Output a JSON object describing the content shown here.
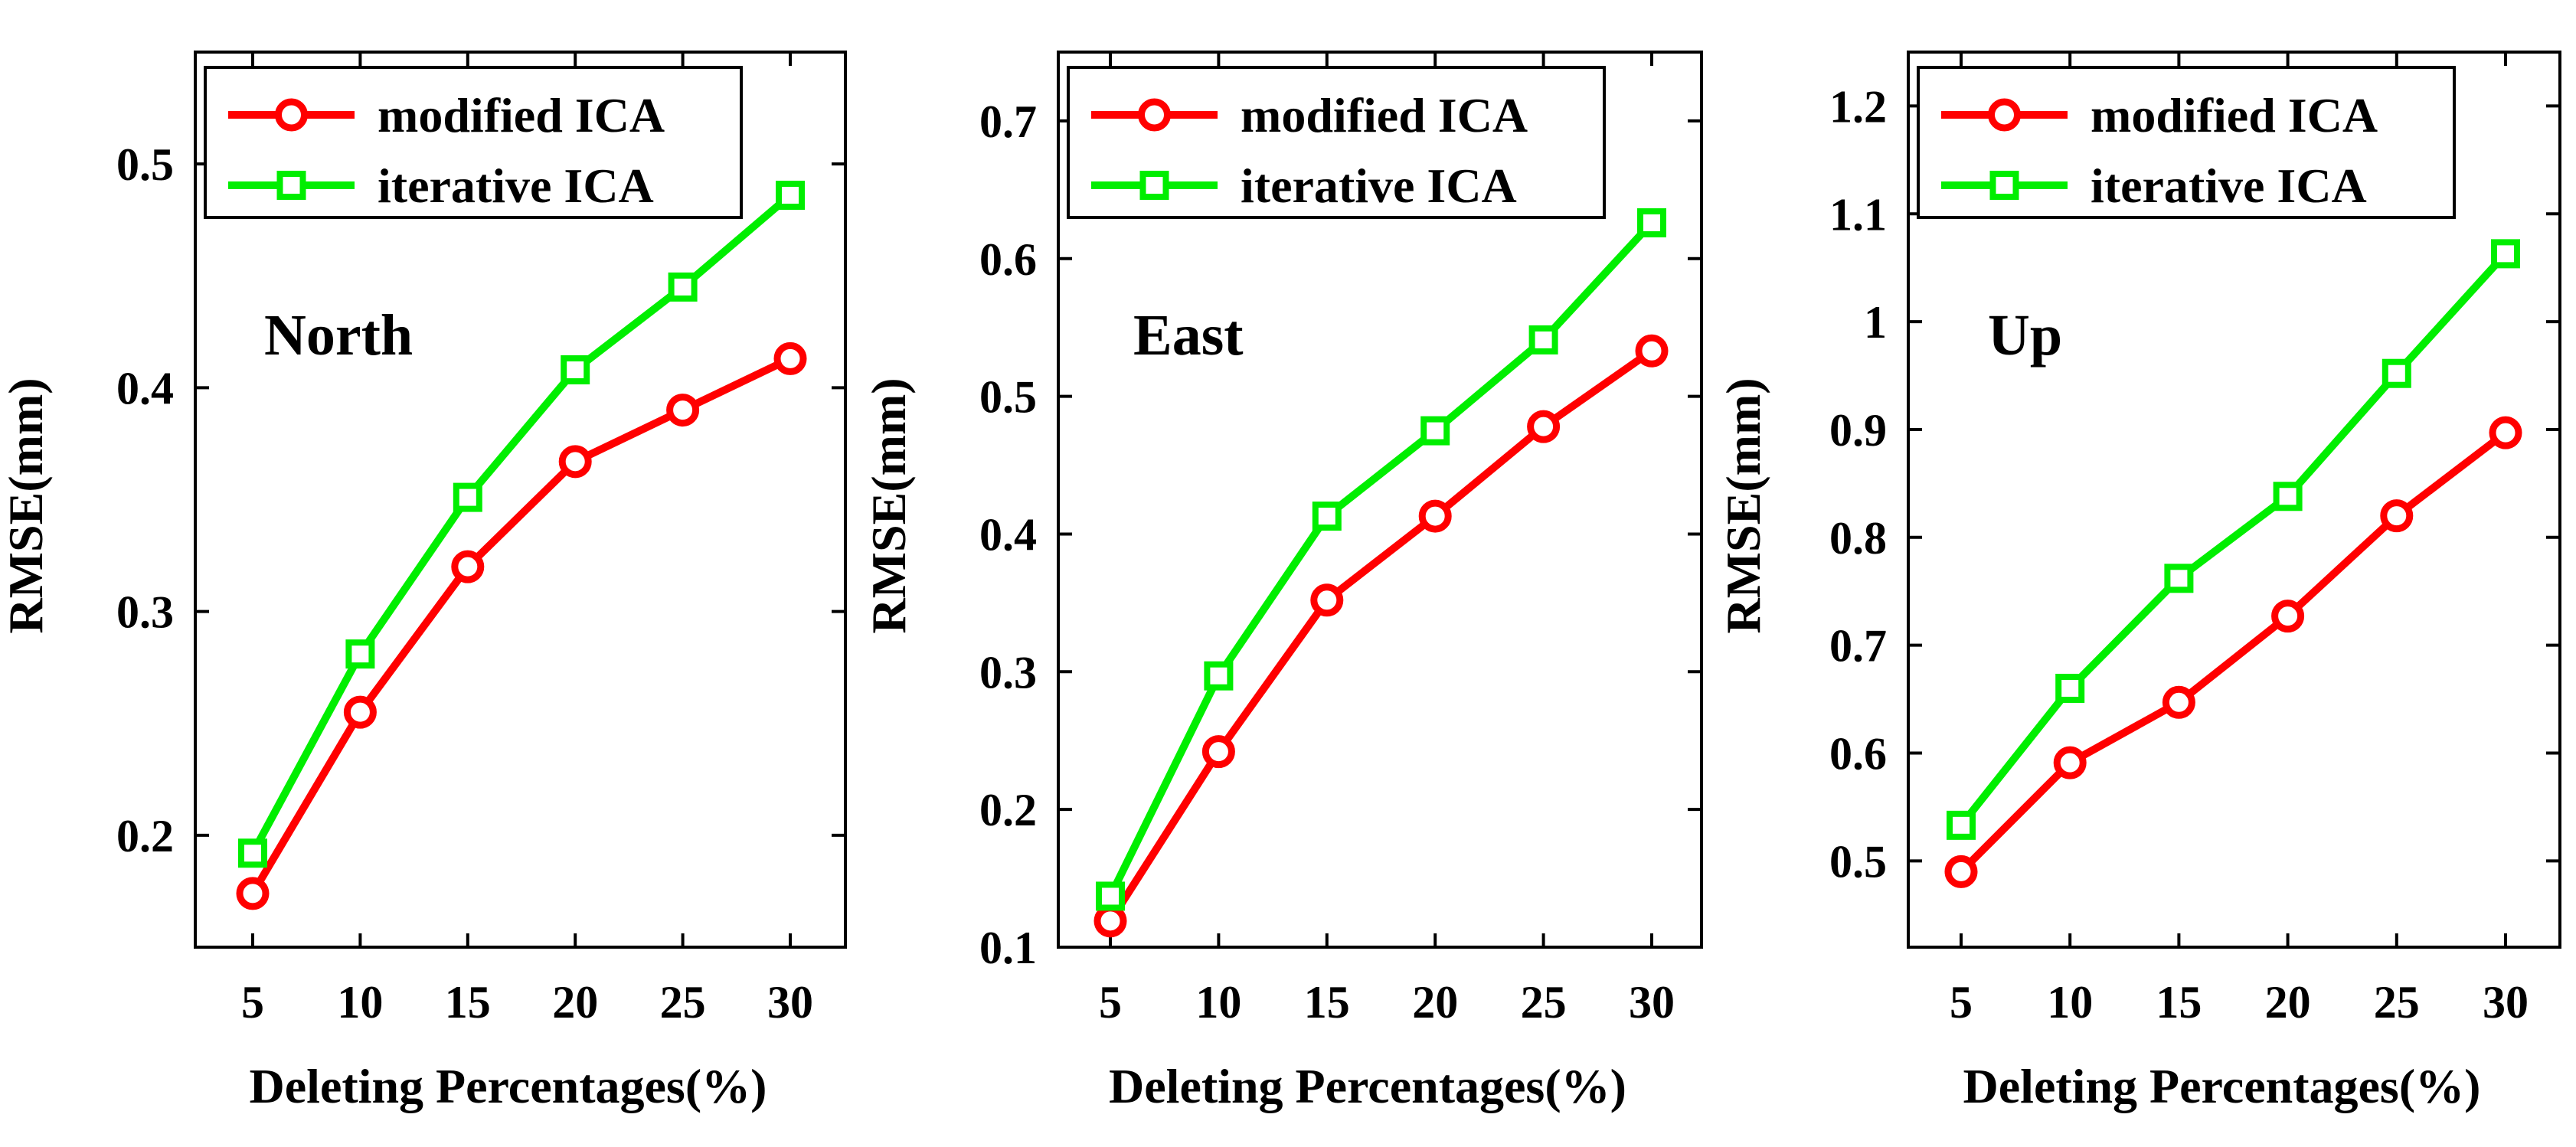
{
  "chart_data": [
    {
      "type": "line",
      "title": "North",
      "xlabel": "Deleting Percentages(%)",
      "ylabel": "RMSE(mm)",
      "x": [
        5,
        10,
        15,
        20,
        25,
        30
      ],
      "xticks": [
        "5",
        "10",
        "15",
        "20",
        "25",
        "30"
      ],
      "ylim": [
        0.15,
        0.55
      ],
      "yticks": [
        "0.2",
        "0.3",
        "0.4",
        "0.5"
      ],
      "yticks_values": [
        0.2,
        0.3,
        0.4,
        0.5
      ],
      "legend_position": "top-left",
      "series": [
        {
          "name": "modified ICA",
          "color": "#ff0000",
          "marker": "circle",
          "values": [
            0.174,
            0.255,
            0.32,
            0.367,
            0.39,
            0.413
          ]
        },
        {
          "name": "iterative ICA",
          "color": "#00ee00",
          "marker": "square",
          "values": [
            0.192,
            0.281,
            0.351,
            0.408,
            0.445,
            0.486
          ]
        }
      ]
    },
    {
      "type": "line",
      "title": "East",
      "xlabel": "Deleting Percentages(%)",
      "ylabel": "RMSE(mm)",
      "x": [
        5,
        10,
        15,
        20,
        25,
        30
      ],
      "xticks": [
        "5",
        "10",
        "15",
        "20",
        "25",
        "30"
      ],
      "ylim": [
        0.1,
        0.75
      ],
      "yticks": [
        "0.1",
        "0.2",
        "0.3",
        "0.4",
        "0.5",
        "0.6",
        "0.7"
      ],
      "yticks_values": [
        0.1,
        0.2,
        0.3,
        0.4,
        0.5,
        0.6,
        0.7
      ],
      "legend_position": "top-left",
      "series": [
        {
          "name": "modified ICA",
          "color": "#ff0000",
          "marker": "circle",
          "values": [
            0.119,
            0.242,
            0.352,
            0.413,
            0.478,
            0.533
          ]
        },
        {
          "name": "iterative ICA",
          "color": "#00ee00",
          "marker": "square",
          "values": [
            0.137,
            0.297,
            0.413,
            0.475,
            0.541,
            0.626
          ]
        }
      ]
    },
    {
      "type": "line",
      "title": "Up",
      "xlabel": "Deleting Percentages(%)",
      "ylabel": "RMSE(mm)",
      "x": [
        5,
        10,
        15,
        20,
        25,
        30
      ],
      "xticks": [
        "5",
        "10",
        "15",
        "20",
        "25",
        "30"
      ],
      "ylim": [
        0.42,
        1.25
      ],
      "yticks": [
        "0.5",
        "0.6",
        "0.7",
        "0.8",
        "0.9",
        "1",
        "1.1",
        "1.2"
      ],
      "yticks_values": [
        0.5,
        0.6,
        0.7,
        0.8,
        0.9,
        1.0,
        1.1,
        1.2
      ],
      "legend_position": "top-left",
      "series": [
        {
          "name": "modified ICA",
          "color": "#ff0000",
          "marker": "circle",
          "values": [
            0.49,
            0.591,
            0.647,
            0.727,
            0.82,
            0.897
          ]
        },
        {
          "name": "iterative ICA",
          "color": "#00ee00",
          "marker": "square",
          "values": [
            0.533,
            0.66,
            0.762,
            0.838,
            0.952,
            1.063
          ]
        }
      ]
    }
  ]
}
